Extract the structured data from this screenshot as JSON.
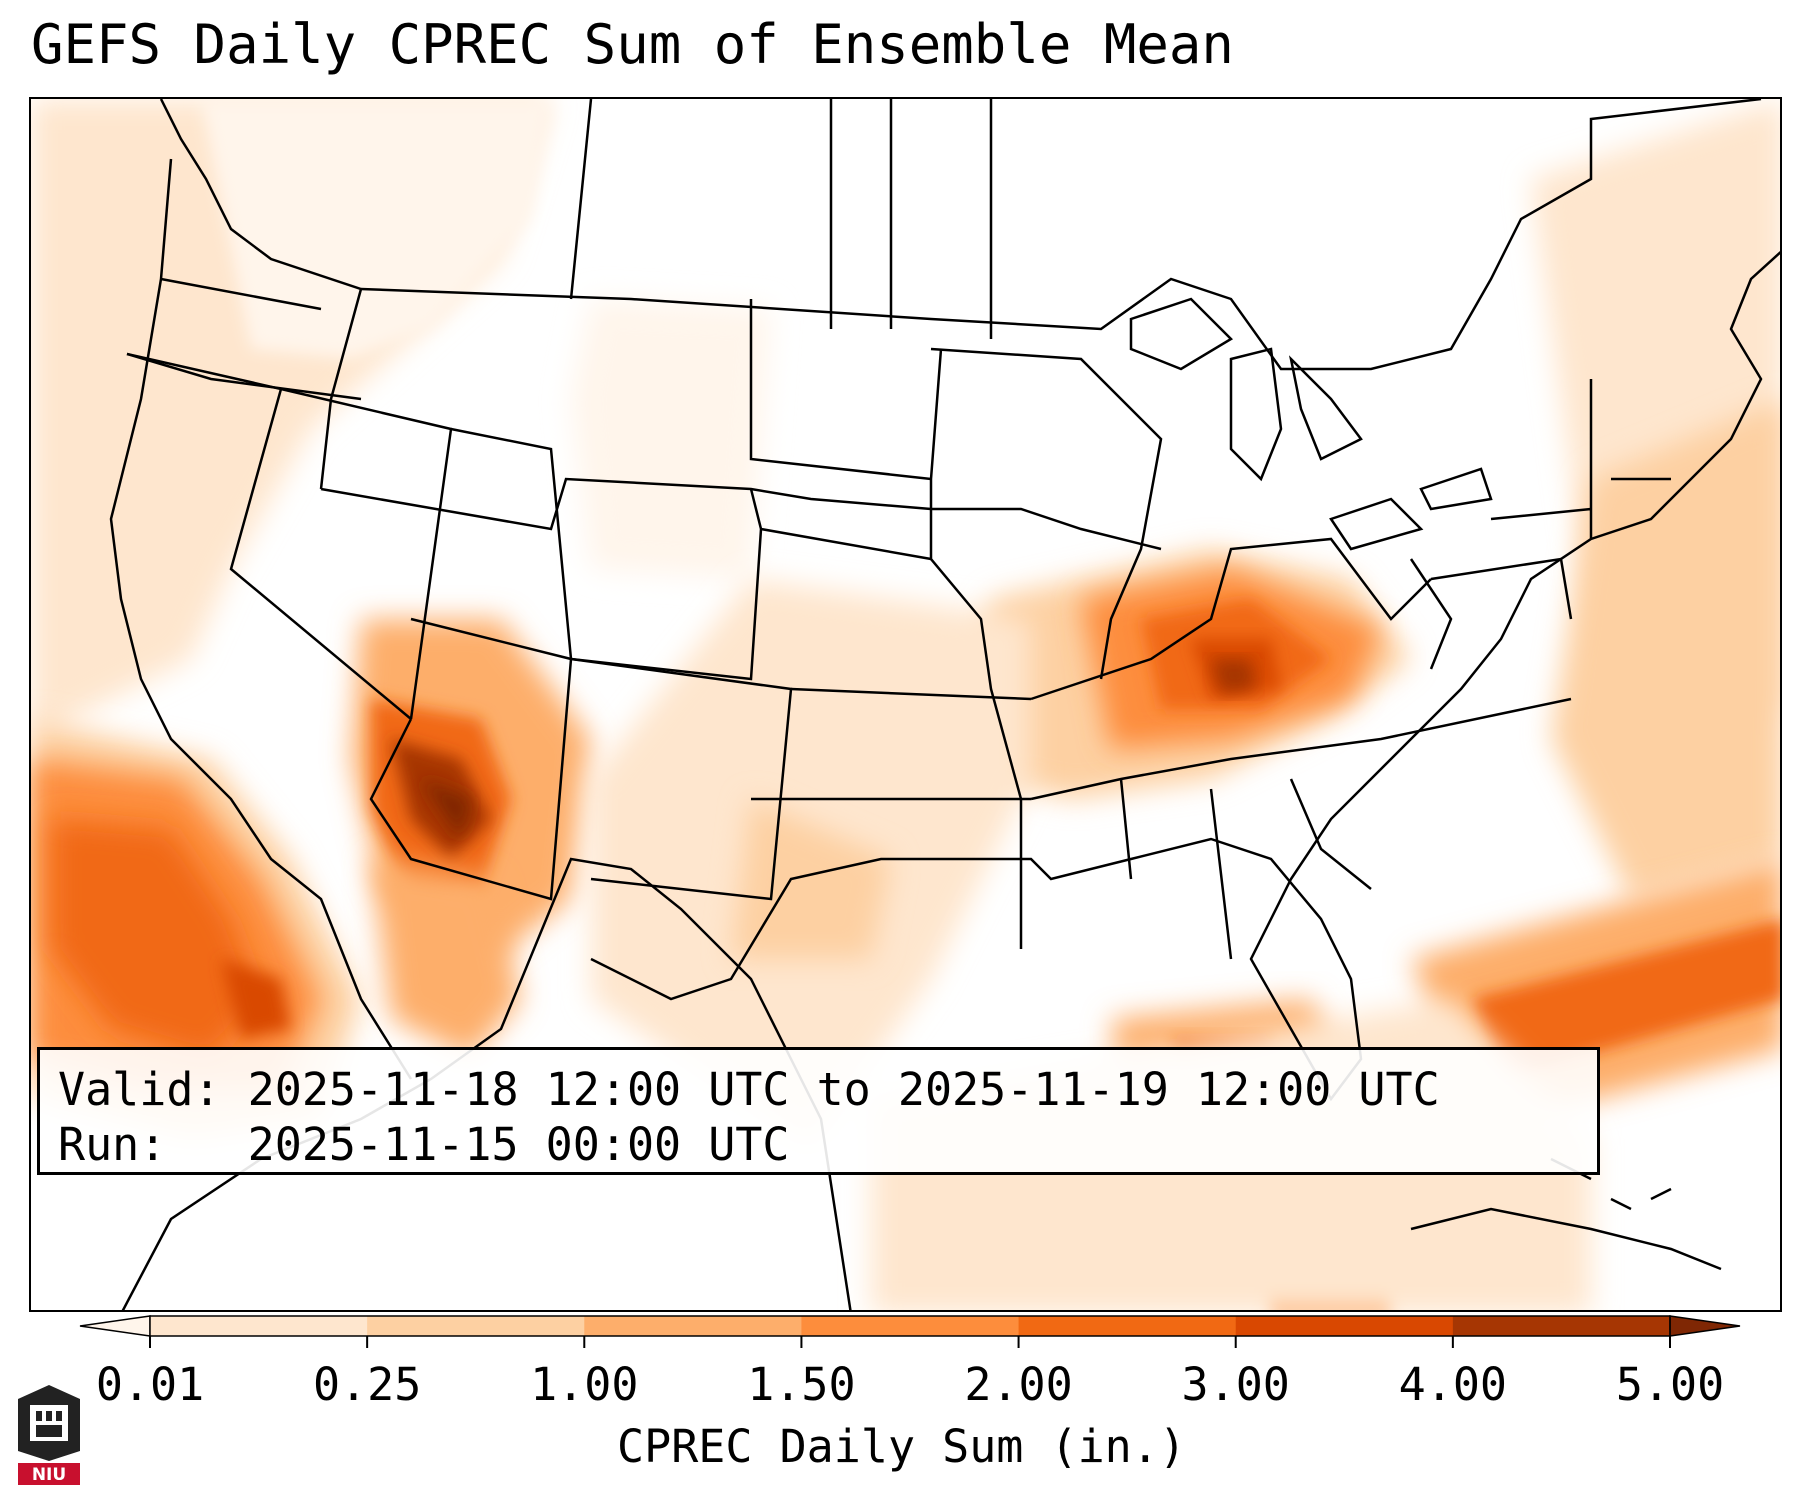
{
  "title": "GEFS Daily CPREC Sum of Ensemble Mean",
  "info": {
    "valid": "Valid: 2025-11-18 12:00 UTC to 2025-11-19 12:00 UTC",
    "run": "Run:   2025-11-15 00:00 UTC"
  },
  "colorbar": {
    "label": "CPREC Daily Sum (in.)",
    "ticks": [
      "0.01",
      "0.25",
      "1.00",
      "1.50",
      "2.00",
      "3.00",
      "4.00",
      "5.00"
    ],
    "colors": [
      "#fff5eb",
      "#fee6ce",
      "#fdd0a2",
      "#fdae6b",
      "#fd8d3c",
      "#f16913",
      "#d94801",
      "#a63603",
      "#7f2704"
    ],
    "extend": "both"
  },
  "logo": {
    "text": "NIU",
    "color": "#c8102e"
  }
}
